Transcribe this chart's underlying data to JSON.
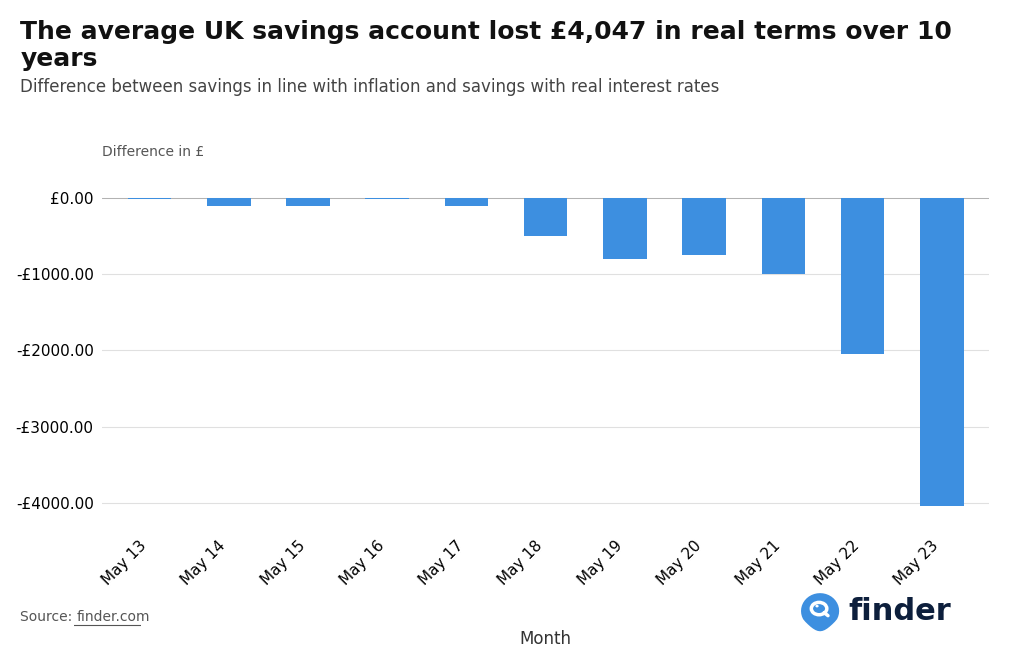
{
  "title": "The average UK savings account lost £4,047 in real terms over 10 years",
  "subtitle": "Difference between savings in line with inflation and savings with real interest rates",
  "ylabel_text": "Difference in £",
  "xlabel": "Month",
  "categories": [
    "May 13",
    "May 14",
    "May 15",
    "May 16",
    "May 17",
    "May 18",
    "May 19",
    "May 20",
    "May 21",
    "May 22",
    "May 23"
  ],
  "values": [
    -10,
    -100,
    -100,
    -10,
    -100,
    -500,
    -800,
    -750,
    -1000,
    -2050,
    -4047
  ],
  "bar_color": "#3d8fe0",
  "background_color": "#ffffff",
  "ylim": [
    -4400,
    300
  ],
  "yticks": [
    0,
    -1000,
    -2000,
    -3000,
    -4000
  ],
  "source_text": "Source: ",
  "source_link": "finder.com",
  "title_fontsize": 18,
  "subtitle_fontsize": 12,
  "tick_fontsize": 11,
  "grid_color": "#e0e0e0",
  "finder_text_color": "#0d1f3c",
  "finder_icon_color": "#3d8fe0"
}
